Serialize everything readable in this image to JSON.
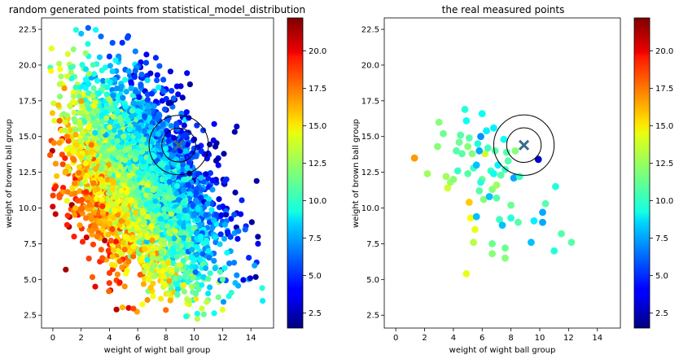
{
  "chart_data": [
    {
      "type": "scatter",
      "title": "random generated points from statistical_model_distribution",
      "xlabel": "weight of wight ball group",
      "ylabel": "weight of brown ball group",
      "xlim": [
        -0.8,
        15.6
      ],
      "ylim": [
        1.6,
        23.3
      ],
      "xticks": [
        "0",
        "2",
        "4",
        "6",
        "8",
        "10",
        "12",
        "14"
      ],
      "yticks": [
        "2.5",
        "5.0",
        "7.5",
        "10.0",
        "12.5",
        "15.0",
        "17.5",
        "20.0",
        "22.5"
      ],
      "colormap": "jet",
      "colorbar": {
        "range": [
          1.5,
          22.2
        ],
        "ticks": [
          "2.5",
          "5.0",
          "7.5",
          "10.0",
          "12.5",
          "15.0",
          "17.5",
          "20.0"
        ]
      },
      "point_count_estimate": 4000,
      "distribution": {
        "mean": [
          6.2,
          11.8
        ],
        "std": [
          2.6,
          3.4
        ],
        "correlation": -0.4,
        "color_value_trend": "high values (red) at low x and low y, low values (blue) at high x and high y"
      },
      "sample_points": [
        [
          0.5,
          17.8,
          12.0
        ],
        [
          1.0,
          15.0,
          17.0
        ],
        [
          1.0,
          10.5,
          14.0
        ],
        [
          1.5,
          8.0,
          19.0
        ],
        [
          2.0,
          22.2,
          8.0
        ],
        [
          2.5,
          22.6,
          6.0
        ],
        [
          3.0,
          4.5,
          20.0
        ],
        [
          3.5,
          6.5,
          18.0
        ],
        [
          4.0,
          20.6,
          5.0
        ],
        [
          4.5,
          2.9,
          21.0
        ],
        [
          5.0,
          15.0,
          12.0
        ],
        [
          6.0,
          11.0,
          11.0
        ],
        [
          7.0,
          18.0,
          5.0
        ],
        [
          8.0,
          12.5,
          8.0
        ],
        [
          9.0,
          14.0,
          4.0
        ],
        [
          10.0,
          9.5,
          7.0
        ],
        [
          11.0,
          7.0,
          9.0
        ],
        [
          12.0,
          5.0,
          11.0
        ],
        [
          13.0,
          15.7,
          3.0
        ],
        [
          14.5,
          7.5,
          4.0
        ],
        [
          14.8,
          4.4,
          10.0
        ],
        [
          13.6,
          8.5,
          6.0
        ]
      ],
      "markers": {
        "cross": [
          8.9,
          14.4
        ],
        "circles": [
          {
            "center": [
              8.9,
              14.4
            ],
            "radius": 1.2
          },
          {
            "center": [
              8.9,
              14.4
            ],
            "radius": 2.1
          }
        ]
      }
    },
    {
      "type": "scatter",
      "title": "the real measured points",
      "xlabel": "weight of wight ball group",
      "ylabel": "weight of brown ball group",
      "xlim": [
        -0.8,
        15.6
      ],
      "ylim": [
        1.6,
        23.3
      ],
      "xticks": [
        "0",
        "2",
        "4",
        "6",
        "8",
        "10",
        "12",
        "14"
      ],
      "yticks": [
        "2.5",
        "5.0",
        "7.5",
        "10.0",
        "12.5",
        "15.0",
        "17.5",
        "20.0",
        "22.5"
      ],
      "colormap": "jet",
      "colorbar": {
        "range": [
          1.5,
          22.2
        ],
        "ticks": [
          "2.5",
          "5.0",
          "7.5",
          "10.0",
          "12.5",
          "15.0",
          "17.5",
          "20.0"
        ]
      },
      "points": [
        [
          1.3,
          13.5,
          16.5
        ],
        [
          2.2,
          12.4,
          12.5
        ],
        [
          3.0,
          16.0,
          12.0
        ],
        [
          2.9,
          14.3,
          12.0
        ],
        [
          3.3,
          15.2,
          11.5
        ],
        [
          3.5,
          12.2,
          12.5
        ],
        [
          3.6,
          11.4,
          13.5
        ],
        [
          3.8,
          11.8,
          12.5
        ],
        [
          4.0,
          12.0,
          12.0
        ],
        [
          4.2,
          14.0,
          11.0
        ],
        [
          4.3,
          12.6,
          10.5
        ],
        [
          4.4,
          14.6,
          11.5
        ],
        [
          4.6,
          13.8,
          11.0
        ],
        [
          4.8,
          16.9,
          10.0
        ],
        [
          4.9,
          16.1,
          9.5
        ],
        [
          5.0,
          12.4,
          11.0
        ],
        [
          5.1,
          14.9,
          11.0
        ],
        [
          5.1,
          10.4,
          15.5
        ],
        [
          5.2,
          9.3,
          14.5
        ],
        [
          5.3,
          13.8,
          12.0
        ],
        [
          5.4,
          12.8,
          10.5
        ],
        [
          5.5,
          8.5,
          14.0
        ],
        [
          5.6,
          9.4,
          8.0
        ],
        [
          5.7,
          14.5,
          10.0
        ],
        [
          5.8,
          11.2,
          11.0
        ],
        [
          5.9,
          15.0,
          7.0
        ],
        [
          6.0,
          12.0,
          11.5
        ],
        [
          6.0,
          16.6,
          9.5
        ],
        [
          6.1,
          10.6,
          12.0
        ],
        [
          6.2,
          13.8,
          13.5
        ],
        [
          6.3,
          15.4,
          9.0
        ],
        [
          6.4,
          14.2,
          10.5
        ],
        [
          6.5,
          10.8,
          8.0
        ],
        [
          6.6,
          12.6,
          10.5
        ],
        [
          6.7,
          11.3,
          12.0
        ],
        [
          6.8,
          15.6,
          9.0
        ],
        [
          6.9,
          14.0,
          11.0
        ],
        [
          7.0,
          10.7,
          11.0
        ],
        [
          7.0,
          11.6,
          12.5
        ],
        [
          7.1,
          13.0,
          9.0
        ],
        [
          7.2,
          9.2,
          10.5
        ],
        [
          7.3,
          12.3,
          11.0
        ],
        [
          7.4,
          8.8,
          8.0
        ],
        [
          7.5,
          14.8,
          9.5
        ],
        [
          7.6,
          12.7,
          10.5
        ],
        [
          7.7,
          13.9,
          11.0
        ],
        [
          7.8,
          13.3,
          11.0
        ],
        [
          8.0,
          10.2,
          11.5
        ],
        [
          8.0,
          9.3,
          10.0
        ],
        [
          8.2,
          12.1,
          7.5
        ],
        [
          8.3,
          14.0,
          12.0
        ],
        [
          8.5,
          9.0,
          11.0
        ],
        [
          8.6,
          12.2,
          10.5
        ],
        [
          4.9,
          5.4,
          14.0
        ],
        [
          5.4,
          7.6,
          13.0
        ],
        [
          6.7,
          7.5,
          11.5
        ],
        [
          6.7,
          6.8,
          12.0
        ],
        [
          7.6,
          7.2,
          11.5
        ],
        [
          7.6,
          6.5,
          12.0
        ],
        [
          9.4,
          7.6,
          8.0
        ],
        [
          9.6,
          9.1,
          9.0
        ],
        [
          10.2,
          9.7,
          7.5
        ],
        [
          10.2,
          9.0,
          7.5
        ],
        [
          10.4,
          10.3,
          11.0
        ],
        [
          11.1,
          11.5,
          10.0
        ],
        [
          11.0,
          7.0,
          10.0
        ],
        [
          11.5,
          8.2,
          11.0
        ],
        [
          12.2,
          7.6,
          11.0
        ],
        [
          9.9,
          13.4,
          3.0
        ],
        [
          5.0,
          14.3,
          12.0
        ],
        [
          5.6,
          13.0,
          8.0
        ],
        [
          5.8,
          14.0,
          7.5
        ],
        [
          4.5,
          15.1,
          11.0
        ],
        [
          5.9,
          11.8,
          10.0
        ],
        [
          6.8,
          12.4,
          9.5
        ]
      ],
      "markers": {
        "cross": [
          8.9,
          14.4
        ],
        "circles": [
          {
            "center": [
              8.9,
              14.4
            ],
            "radius": 1.2
          },
          {
            "center": [
              8.9,
              14.4
            ],
            "radius": 2.1
          }
        ]
      }
    }
  ]
}
